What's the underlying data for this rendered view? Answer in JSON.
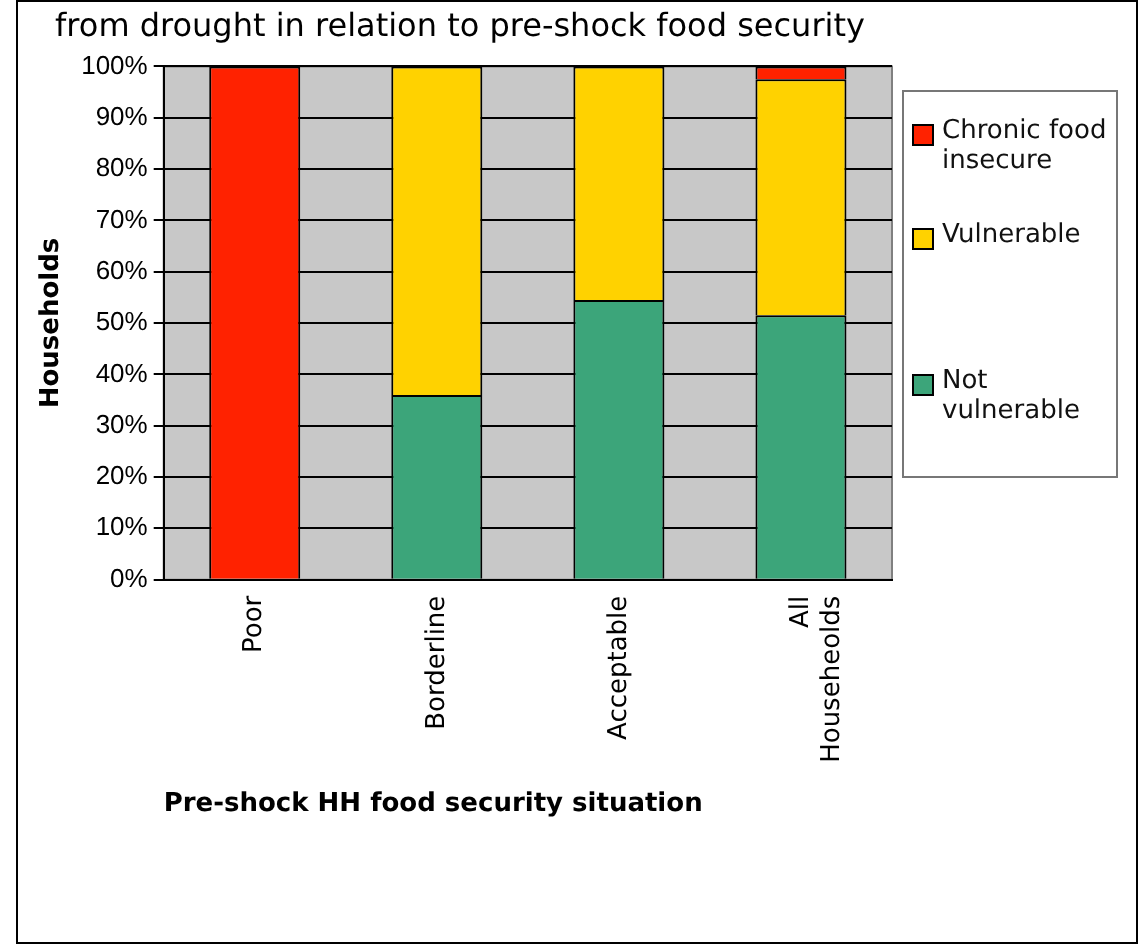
{
  "chart_data": {
    "type": "bar",
    "title": "from drought in relation to pre-shock food security",
    "xlabel": "Pre-shock HH food security situation",
    "ylabel": "Households",
    "categories": [
      "Poor",
      "Borderline",
      "Acceptable",
      "All Househeolds"
    ],
    "stacked": true,
    "series": [
      {
        "name": "Not vulnerable",
        "color": "#3ca57a",
        "values": [
          0,
          36,
          54.5,
          51.5
        ]
      },
      {
        "name": "Vulnerable",
        "color": "#ffd200",
        "values": [
          0,
          64,
          45.5,
          46
        ]
      },
      {
        "name": "Chronic food insecure",
        "color": "#ff2200",
        "values": [
          100,
          0,
          0,
          2.5
        ]
      }
    ],
    "ylim": [
      0,
      100
    ],
    "yticks": [
      {
        "value": 0,
        "label": "0%"
      },
      {
        "value": 10,
        "label": "10%"
      },
      {
        "value": 20,
        "label": "20%"
      },
      {
        "value": 30,
        "label": "30%"
      },
      {
        "value": 40,
        "label": "40%"
      },
      {
        "value": 50,
        "label": "50%"
      },
      {
        "value": 60,
        "label": "60%"
      },
      {
        "value": 70,
        "label": "70%"
      },
      {
        "value": 80,
        "label": "80%"
      },
      {
        "value": 90,
        "label": "90%"
      },
      {
        "value": 100,
        "label": "100%"
      }
    ],
    "grid": "y",
    "legend": "right"
  }
}
